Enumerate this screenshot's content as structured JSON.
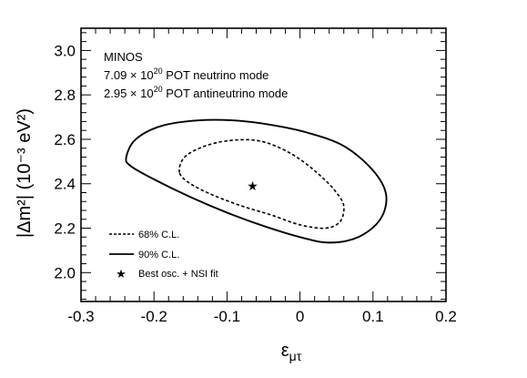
{
  "chart_data": {
    "type": "line",
    "xlabel": "ε",
    "xlabel_sub": "μτ",
    "ylabel": "|Δm²| (10⁻³ eV²)",
    "xlim": [
      -0.3,
      0.2
    ],
    "ylim": [
      1.87,
      3.1
    ],
    "x_ticks": [
      -0.3,
      -0.2,
      -0.1,
      0,
      0.1,
      0.2
    ],
    "x_tick_labels": [
      "-0.3",
      "-0.2",
      "-0.1",
      "0",
      "0.1",
      "0.2"
    ],
    "y_ticks": [
      2.0,
      2.2,
      2.4,
      2.6,
      2.8,
      3.0
    ],
    "y_tick_labels": [
      "2.0",
      "2.2",
      "2.4",
      "2.6",
      "2.8",
      "3.0"
    ],
    "grid": false,
    "annotations": [
      {
        "text": "MINOS"
      },
      {
        "prefix": "7.09 × 10",
        "sup": "20",
        "suffix": " POT neutrino mode"
      },
      {
        "prefix": "2.95 × 10",
        "sup": "20",
        "suffix": " POT antineutrino mode"
      }
    ],
    "legend_position": "bottom-left",
    "series": [
      {
        "name": "68% C.L.",
        "style": "dashed",
        "color": "#000000",
        "x": [
          -0.165,
          -0.158,
          -0.13,
          -0.095,
          -0.06,
          -0.03,
          0.0,
          0.03,
          0.05,
          0.06,
          0.055,
          0.035,
          0.0,
          -0.04,
          -0.08,
          -0.12,
          -0.15,
          -0.165
        ],
        "y": [
          2.45,
          2.52,
          2.57,
          2.595,
          2.595,
          2.565,
          2.51,
          2.43,
          2.36,
          2.3,
          2.23,
          2.2,
          2.215,
          2.26,
          2.3,
          2.35,
          2.4,
          2.45
        ]
      },
      {
        "name": "90% C.L.",
        "style": "solid",
        "color": "#000000",
        "x": [
          -0.238,
          -0.225,
          -0.19,
          -0.14,
          -0.09,
          -0.04,
          0.01,
          0.06,
          0.1,
          0.118,
          0.11,
          0.08,
          0.04,
          0.0,
          -0.05,
          -0.1,
          -0.15,
          -0.2,
          -0.232,
          -0.238
        ],
        "y": [
          2.52,
          2.6,
          2.66,
          2.685,
          2.685,
          2.665,
          2.63,
          2.57,
          2.46,
          2.35,
          2.24,
          2.16,
          2.135,
          2.16,
          2.21,
          2.27,
          2.34,
          2.42,
          2.48,
          2.52
        ]
      }
    ],
    "points": [
      {
        "name": "Best osc. + NSI fit",
        "marker": "star",
        "x": -0.065,
        "y": 2.39
      }
    ],
    "legend": [
      {
        "label": "68% C.L.",
        "style": "dashed"
      },
      {
        "label": "90% C.L.",
        "style": "solid"
      },
      {
        "label": "Best osc. + NSI fit",
        "style": "star"
      }
    ]
  }
}
